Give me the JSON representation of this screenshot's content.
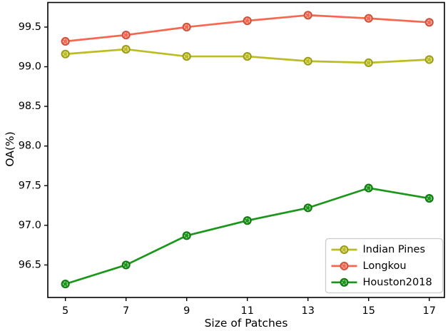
{
  "figure": {
    "xlabel": "Size of Patches",
    "ylabel": "OA(%)"
  },
  "chart_data": {
    "type": "line",
    "title": "",
    "xlabel": "Size of Patches",
    "ylabel": "OA(%)",
    "x": [
      5,
      7,
      9,
      11,
      13,
      15,
      17
    ],
    "series": [
      {
        "name": "Indian Pines",
        "color": "#bcbd22",
        "values": [
          99.16,
          99.22,
          99.13,
          99.13,
          99.07,
          99.05,
          99.09
        ]
      },
      {
        "name": "Longkou",
        "color": "#f7664e",
        "values": [
          99.32,
          99.4,
          99.5,
          99.58,
          99.65,
          99.61,
          99.56
        ]
      },
      {
        "name": "Houston2018",
        "color": "#1a961a",
        "values": [
          96.26,
          96.5,
          96.87,
          97.06,
          97.22,
          97.47,
          97.34
        ]
      }
    ],
    "xticks": [
      5,
      7,
      9,
      11,
      13,
      15,
      17
    ],
    "yticks": [
      96.5,
      97.0,
      97.5,
      98.0,
      98.5,
      99.0,
      99.5
    ],
    "xlim": [
      4.42,
      17.5
    ],
    "ylim": [
      96.09,
      99.81
    ],
    "grid": false,
    "legend_position": "lower right",
    "marker": "circle",
    "axis_color": "#000000",
    "legend_border_color": "#cccccc"
  }
}
